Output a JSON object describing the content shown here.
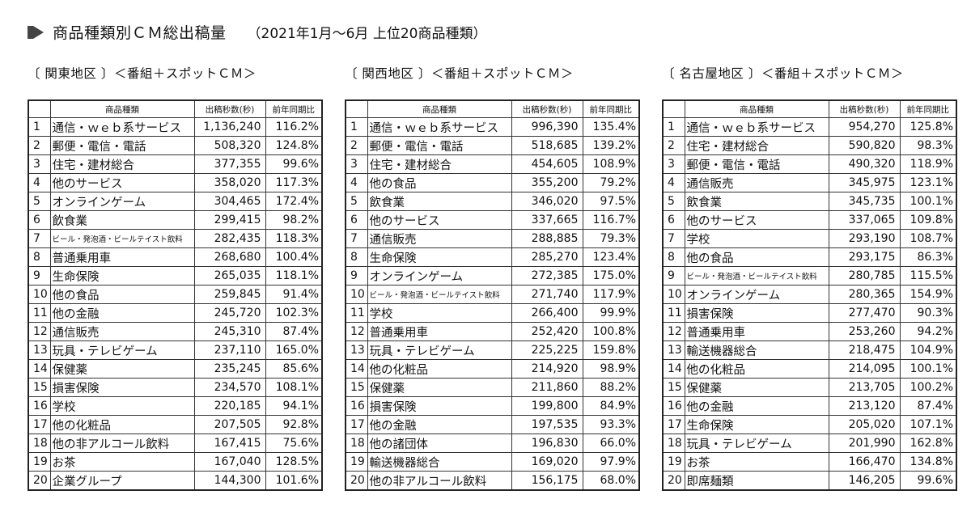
{
  "header": {
    "title": "商品種類別ＣＭ総出稿量",
    "subtitle": "（2021年1月～6月 上位20商品種類）"
  },
  "columns": {
    "category": "商品種類",
    "seconds": "出稿秒数(秒)",
    "yoy": "前年同期比"
  },
  "panels": [
    {
      "region": "〔 関東地区 〕＜番組＋スポットＣＭ＞",
      "rows": [
        {
          "rank": "1",
          "name": "通信・ｗｅｂ系サービス",
          "seconds": "1,136,240",
          "yoy": "116.2%"
        },
        {
          "rank": "2",
          "name": "郵便・電信・電話",
          "seconds": "508,320",
          "yoy": "124.8%"
        },
        {
          "rank": "3",
          "name": "住宅・建材総合",
          "seconds": "377,355",
          "yoy": "99.6%"
        },
        {
          "rank": "4",
          "name": "他のサービス",
          "seconds": "358,020",
          "yoy": "117.3%"
        },
        {
          "rank": "5",
          "name": "オンラインゲーム",
          "seconds": "304,465",
          "yoy": "172.4%"
        },
        {
          "rank": "6",
          "name": "飲食業",
          "seconds": "299,415",
          "yoy": "98.2%"
        },
        {
          "rank": "7",
          "name": "ビール・発泡酒・ビールテイスト飲料",
          "seconds": "282,435",
          "yoy": "118.3%",
          "small": true
        },
        {
          "rank": "8",
          "name": "普通乗用車",
          "seconds": "268,680",
          "yoy": "100.4%"
        },
        {
          "rank": "9",
          "name": "生命保険",
          "seconds": "265,035",
          "yoy": "118.1%"
        },
        {
          "rank": "10",
          "name": "他の食品",
          "seconds": "259,845",
          "yoy": "91.4%"
        },
        {
          "rank": "11",
          "name": "他の金融",
          "seconds": "245,720",
          "yoy": "102.3%"
        },
        {
          "rank": "12",
          "name": "通信販売",
          "seconds": "245,310",
          "yoy": "87.4%"
        },
        {
          "rank": "13",
          "name": "玩具・テレビゲーム",
          "seconds": "237,110",
          "yoy": "165.0%"
        },
        {
          "rank": "14",
          "name": "保健薬",
          "seconds": "235,245",
          "yoy": "85.6%"
        },
        {
          "rank": "15",
          "name": "損害保険",
          "seconds": "234,570",
          "yoy": "108.1%"
        },
        {
          "rank": "16",
          "name": "学校",
          "seconds": "220,185",
          "yoy": "94.1%"
        },
        {
          "rank": "17",
          "name": "他の化粧品",
          "seconds": "207,505",
          "yoy": "92.8%"
        },
        {
          "rank": "18",
          "name": "他の非アルコール飲料",
          "seconds": "167,415",
          "yoy": "75.6%"
        },
        {
          "rank": "19",
          "name": "お茶",
          "seconds": "167,040",
          "yoy": "128.5%"
        },
        {
          "rank": "20",
          "name": "企業グループ",
          "seconds": "144,300",
          "yoy": "101.6%"
        }
      ]
    },
    {
      "region": "〔 関西地区 〕＜番組＋スポットＣＭ＞",
      "rows": [
        {
          "rank": "1",
          "name": "通信・ｗｅｂ系サービス",
          "seconds": "996,390",
          "yoy": "135.4%"
        },
        {
          "rank": "2",
          "name": "郵便・電信・電話",
          "seconds": "518,685",
          "yoy": "139.2%"
        },
        {
          "rank": "3",
          "name": "住宅・建材総合",
          "seconds": "454,605",
          "yoy": "108.9%"
        },
        {
          "rank": "4",
          "name": "他の食品",
          "seconds": "355,200",
          "yoy": "79.2%"
        },
        {
          "rank": "5",
          "name": "飲食業",
          "seconds": "346,020",
          "yoy": "97.5%"
        },
        {
          "rank": "6",
          "name": "他のサービス",
          "seconds": "337,665",
          "yoy": "116.7%"
        },
        {
          "rank": "7",
          "name": "通信販売",
          "seconds": "288,885",
          "yoy": "79.3%"
        },
        {
          "rank": "8",
          "name": "生命保険",
          "seconds": "285,270",
          "yoy": "123.4%"
        },
        {
          "rank": "9",
          "name": "オンラインゲーム",
          "seconds": "272,385",
          "yoy": "175.0%"
        },
        {
          "rank": "10",
          "name": "ビール・発泡酒・ビールテイスト飲料",
          "seconds": "271,740",
          "yoy": "117.9%",
          "small": true
        },
        {
          "rank": "11",
          "name": "学校",
          "seconds": "266,400",
          "yoy": "99.9%"
        },
        {
          "rank": "12",
          "name": "普通乗用車",
          "seconds": "252,420",
          "yoy": "100.8%"
        },
        {
          "rank": "13",
          "name": "玩具・テレビゲーム",
          "seconds": "225,225",
          "yoy": "159.8%"
        },
        {
          "rank": "14",
          "name": "他の化粧品",
          "seconds": "214,920",
          "yoy": "98.9%"
        },
        {
          "rank": "15",
          "name": "保健薬",
          "seconds": "211,860",
          "yoy": "88.2%"
        },
        {
          "rank": "16",
          "name": "損害保険",
          "seconds": "199,800",
          "yoy": "84.9%"
        },
        {
          "rank": "17",
          "name": "他の金融",
          "seconds": "197,535",
          "yoy": "93.3%"
        },
        {
          "rank": "18",
          "name": "他の諸団体",
          "seconds": "196,830",
          "yoy": "66.0%"
        },
        {
          "rank": "19",
          "name": "輸送機器総合",
          "seconds": "169,020",
          "yoy": "97.9%"
        },
        {
          "rank": "20",
          "name": "他の非アルコール飲料",
          "seconds": "156,175",
          "yoy": "68.0%"
        }
      ]
    },
    {
      "region": "〔 名古屋地区 〕＜番組＋スポットＣＭ＞",
      "rows": [
        {
          "rank": "1",
          "name": "通信・ｗｅｂ系サービス",
          "seconds": "954,270",
          "yoy": "125.8%"
        },
        {
          "rank": "2",
          "name": "住宅・建材総合",
          "seconds": "590,820",
          "yoy": "98.3%"
        },
        {
          "rank": "3",
          "name": "郵便・電信・電話",
          "seconds": "490,320",
          "yoy": "118.9%"
        },
        {
          "rank": "4",
          "name": "通信販売",
          "seconds": "345,975",
          "yoy": "123.1%"
        },
        {
          "rank": "5",
          "name": "飲食業",
          "seconds": "345,735",
          "yoy": "100.1%"
        },
        {
          "rank": "6",
          "name": "他のサービス",
          "seconds": "337,065",
          "yoy": "109.8%"
        },
        {
          "rank": "7",
          "name": "学校",
          "seconds": "293,190",
          "yoy": "108.7%"
        },
        {
          "rank": "8",
          "name": "他の食品",
          "seconds": "293,175",
          "yoy": "86.3%"
        },
        {
          "rank": "9",
          "name": "ビール・発泡酒・ビールテイスト飲料",
          "seconds": "280,785",
          "yoy": "115.5%",
          "small": true
        },
        {
          "rank": "10",
          "name": "オンラインゲーム",
          "seconds": "280,365",
          "yoy": "154.9%"
        },
        {
          "rank": "11",
          "name": "損害保険",
          "seconds": "277,470",
          "yoy": "90.3%"
        },
        {
          "rank": "12",
          "name": "普通乗用車",
          "seconds": "253,260",
          "yoy": "94.2%"
        },
        {
          "rank": "13",
          "name": "輸送機器総合",
          "seconds": "218,475",
          "yoy": "104.9%"
        },
        {
          "rank": "14",
          "name": "他の化粧品",
          "seconds": "214,095",
          "yoy": "100.1%"
        },
        {
          "rank": "15",
          "name": "保健薬",
          "seconds": "213,705",
          "yoy": "100.2%"
        },
        {
          "rank": "16",
          "name": "他の金融",
          "seconds": "213,120",
          "yoy": "87.4%"
        },
        {
          "rank": "17",
          "name": "生命保険",
          "seconds": "205,020",
          "yoy": "107.1%"
        },
        {
          "rank": "18",
          "name": "玩具・テレビゲーム",
          "seconds": "201,990",
          "yoy": "162.8%"
        },
        {
          "rank": "19",
          "name": "お茶",
          "seconds": "166,470",
          "yoy": "134.8%"
        },
        {
          "rank": "20",
          "name": "即席麺類",
          "seconds": "146,205",
          "yoy": "99.6%"
        }
      ]
    }
  ]
}
